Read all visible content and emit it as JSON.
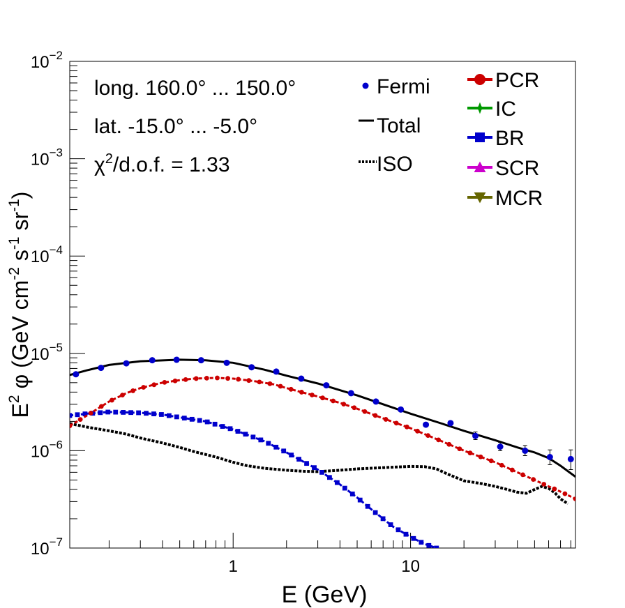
{
  "chart_data": {
    "type": "line",
    "xlabel": "E (GeV)",
    "ylabel": {
      "prefix": "E",
      "sup1": "2",
      "mid": " φ (GeV cm",
      "sup2": "-2",
      "mid2": " s",
      "sup3": "-1",
      "mid3": " sr",
      "sup4": "-1",
      "suffix": ")"
    },
    "x_scale": "log",
    "y_scale": "log",
    "xlim": [
      0.12,
      85
    ],
    "ylim": [
      1e-07,
      0.01
    ],
    "x_tick_labels": [
      {
        "value": 1,
        "label": "1"
      },
      {
        "value": 10,
        "label": "10"
      }
    ],
    "y_tick_labels": [
      {
        "value": 1e-07,
        "base": "10",
        "exp": "−7"
      },
      {
        "value": 1e-06,
        "base": "10",
        "exp": "−6"
      },
      {
        "value": 1e-05,
        "base": "10",
        "exp": "−5"
      },
      {
        "value": 0.0001,
        "base": "10",
        "exp": "−4"
      },
      {
        "value": 0.001,
        "base": "10",
        "exp": "−3"
      },
      {
        "value": 0.01,
        "base": "10",
        "exp": "−2"
      }
    ],
    "annotations": {
      "longitude": "long. 160.0° ... 150.0°",
      "latitude": "lat. -15.0° ... -5.0°",
      "chi2_symbol": "χ",
      "chi2_exp": "2",
      "chi2_rest": "/d.o.f. = 1.33"
    },
    "legend": {
      "placement": "top-right",
      "entries_left": [
        {
          "label": "Fermi",
          "style": "dot",
          "color": "#0000cc"
        },
        {
          "label": "Total",
          "style": "solid",
          "color": "#000000"
        },
        {
          "label": "ISO",
          "style": "dotted",
          "color": "#000000"
        }
      ],
      "entries_right": [
        {
          "label": "PCR",
          "marker": "circle",
          "color": "#cc0000"
        },
        {
          "label": "IC",
          "marker": "star",
          "color": "#009900"
        },
        {
          "label": "BR",
          "marker": "square",
          "color": "#0000cc"
        },
        {
          "label": "SCR",
          "marker": "triangle-up",
          "color": "#cc00cc"
        },
        {
          "label": "MCR",
          "marker": "triangle-down",
          "color": "#666600"
        }
      ]
    },
    "series": [
      {
        "name": "Fermi",
        "kind": "points",
        "color": "#0000cc",
        "x": [
          0.13,
          0.18,
          0.25,
          0.35,
          0.48,
          0.66,
          0.92,
          1.27,
          1.75,
          2.42,
          3.35,
          4.62,
          6.38,
          8.81,
          12.2,
          16.8,
          23.2,
          32.0,
          44.2,
          61.0,
          80.0
        ],
        "y": [
          6.1e-06,
          7.1e-06,
          7.9e-06,
          8.5e-06,
          8.6e-06,
          8.5e-06,
          8e-06,
          7.2e-06,
          6.5e-06,
          5.5e-06,
          4.7e-06,
          3.9e-06,
          3.2e-06,
          2.65e-06,
          1.85e-06,
          1.92e-06,
          1.42e-06,
          1.1e-06,
          1e-06,
          8.6e-07,
          8.2e-07
        ],
        "err_low": [
          0,
          0,
          0,
          0,
          0,
          0,
          0,
          0,
          0,
          0,
          0,
          0,
          0,
          0,
          0,
          0,
          1.2e-07,
          1e-07,
          1.1e-07,
          1.4e-07,
          1.8e-07
        ],
        "err_high": [
          0,
          0,
          0,
          0,
          0,
          0,
          0,
          0,
          0,
          0,
          0,
          0,
          0,
          0,
          0,
          0,
          1.4e-07,
          1.2e-07,
          1.3e-07,
          1.6e-07,
          2e-07
        ]
      },
      {
        "name": "Total",
        "kind": "line",
        "color": "#000000",
        "x": [
          0.12,
          0.15,
          0.2,
          0.3,
          0.5,
          0.7,
          1.0,
          1.5,
          2.0,
          3.0,
          5.0,
          7.0,
          10.0,
          15.0,
          20.0,
          30.0,
          40.0,
          50.0,
          60.0,
          70.0,
          85.0
        ],
        "y": [
          6e-06,
          6.7e-06,
          7.6e-06,
          8.3e-06,
          8.6e-06,
          8.5e-06,
          8e-06,
          6.8e-06,
          5.9e-06,
          4.9e-06,
          3.7e-06,
          3e-06,
          2.4e-06,
          1.9e-06,
          1.6e-06,
          1.28e-06,
          1.08e-06,
          9.6e-07,
          8.4e-07,
          7e-07,
          5.4e-07
        ]
      },
      {
        "name": "ISO",
        "kind": "dotted",
        "color": "#000000",
        "x": [
          0.12,
          0.15,
          0.2,
          0.25,
          0.3,
          0.4,
          0.5,
          0.6,
          0.8,
          1.0,
          1.2,
          1.5,
          2.0,
          2.5,
          3.0,
          4.0,
          5.0,
          7.0,
          10.0,
          12.0,
          14.0,
          16.0,
          20.0,
          25.0,
          30.0,
          35.0,
          40.0,
          45.0,
          50.0,
          55.0,
          60.0,
          65.0,
          70.0,
          77.0
        ],
        "y": [
          1.9e-06,
          1.75e-06,
          1.6e-06,
          1.48e-06,
          1.35e-06,
          1.2e-06,
          1.08e-06,
          9.8e-07,
          8.6e-07,
          7.6e-07,
          7e-07,
          6.6e-07,
          6.3e-07,
          6.15e-07,
          6.1e-07,
          6.3e-07,
          6.5e-07,
          6.7e-07,
          6.9e-07,
          6.85e-07,
          6.5e-07,
          5.8e-07,
          4.9e-07,
          4.6e-07,
          4.3e-07,
          4e-07,
          3.75e-07,
          3.65e-07,
          4e-07,
          4.3e-07,
          4.1e-07,
          3.7e-07,
          3.2e-07,
          2.85e-07
        ]
      },
      {
        "name": "PCR",
        "kind": "marker-line",
        "marker": "circle",
        "color": "#cc0000",
        "x": [
          0.12,
          0.15,
          0.2,
          0.25,
          0.3,
          0.4,
          0.5,
          0.6,
          0.8,
          1.0,
          1.3,
          1.7,
          2.0,
          3.0,
          4.0,
          5.0,
          7.0,
          10.0,
          15.0,
          20.0,
          30.0,
          40.0,
          50.0,
          60.0,
          70.0,
          85.0
        ],
        "y": [
          1.8e-06,
          2.3e-06,
          3.2e-06,
          3.9e-06,
          4.4e-06,
          5e-06,
          5.3e-06,
          5.5e-06,
          5.6e-06,
          5.5e-06,
          5.2e-06,
          4.8e-06,
          4.4e-06,
          3.6e-06,
          3.1e-06,
          2.7e-06,
          2.15e-06,
          1.7e-06,
          1.25e-06,
          1e-06,
          7.6e-07,
          6e-07,
          5e-07,
          4.3e-07,
          3.8e-07,
          3.2e-07
        ]
      },
      {
        "name": "BR",
        "kind": "marker-line",
        "marker": "square",
        "color": "#0000cc",
        "x": [
          0.12,
          0.15,
          0.2,
          0.3,
          0.4,
          0.5,
          0.7,
          1.0,
          1.5,
          2.0,
          3.0,
          4.0,
          5.0,
          6.0,
          7.0,
          8.0,
          10.0,
          12.0,
          14.0
        ],
        "y": [
          2.3e-06,
          2.4e-06,
          2.5e-06,
          2.45e-06,
          2.35e-06,
          2.2e-06,
          2e-06,
          1.65e-06,
          1.25e-06,
          9.6e-07,
          6.4e-07,
          4.5e-07,
          3.3e-07,
          2.5e-07,
          2e-07,
          1.65e-07,
          1.3e-07,
          1.1e-07,
          1e-07
        ]
      }
    ]
  }
}
